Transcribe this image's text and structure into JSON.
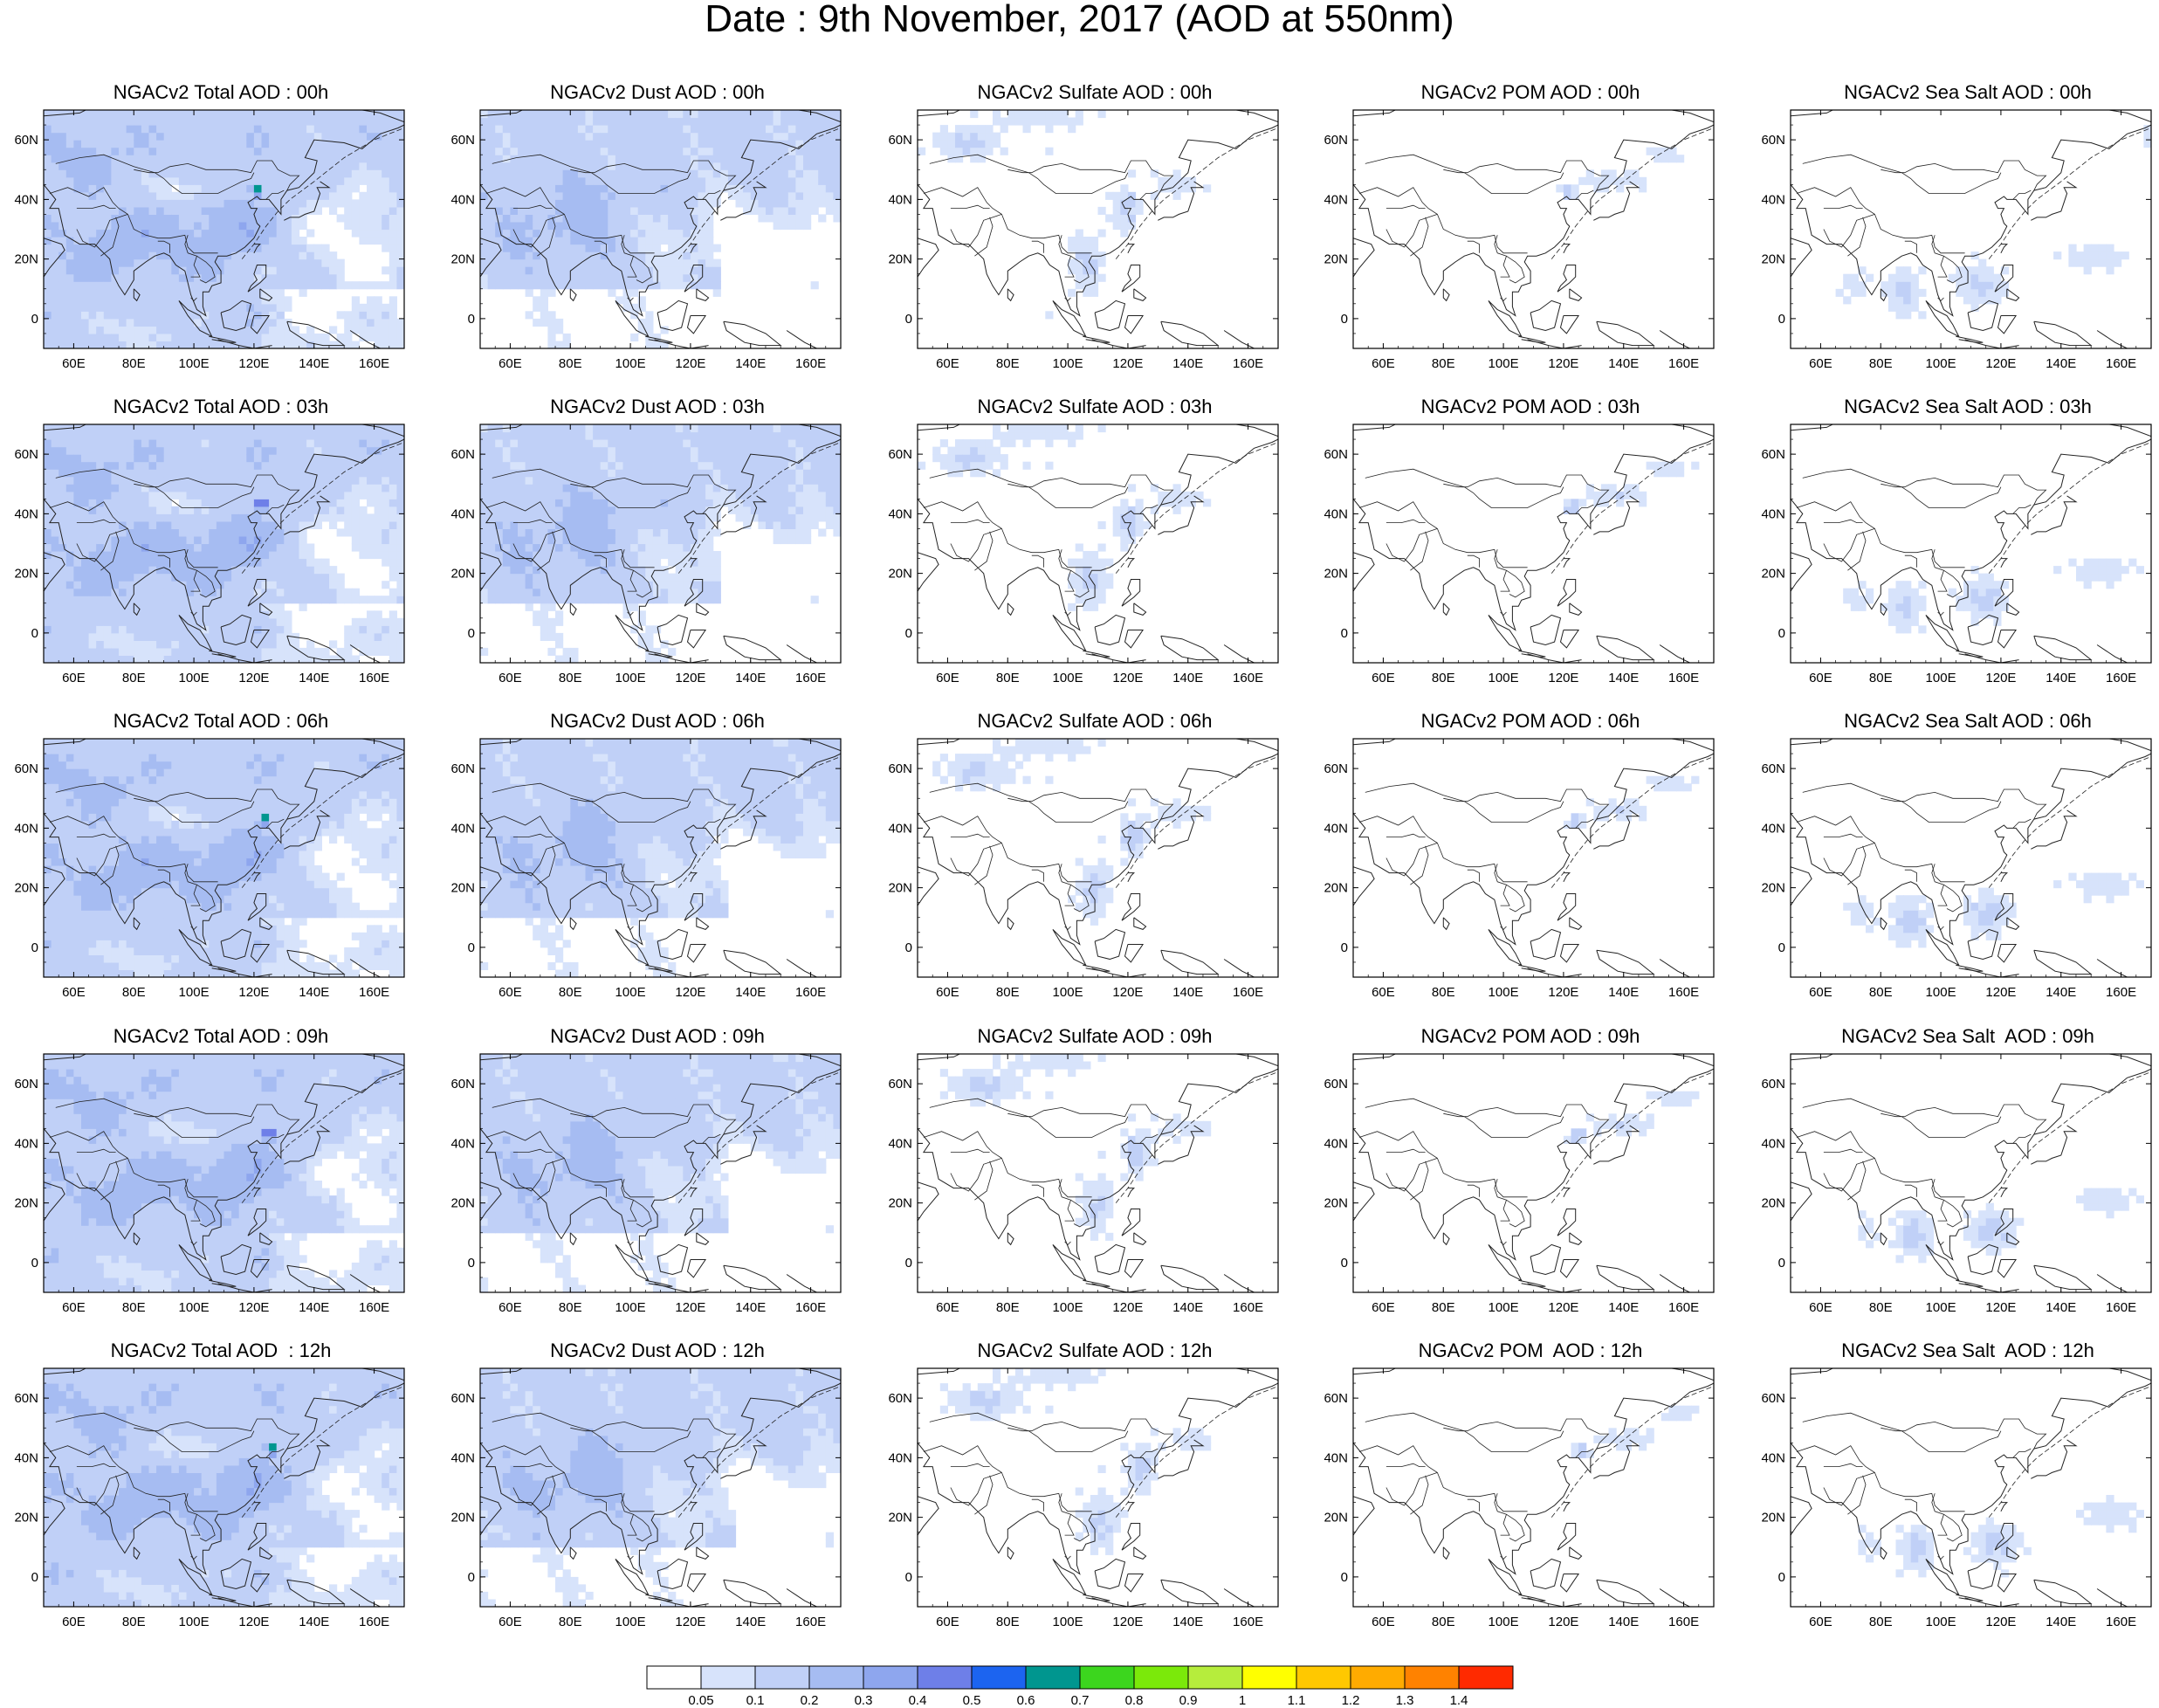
{
  "title": "Date : 9th November, 2017 (AOD at 550nm)",
  "map": {
    "lon_range": [
      50,
      170
    ],
    "lat_range": [
      -10,
      70
    ],
    "lon_ticks": [
      60,
      80,
      100,
      120,
      140,
      160
    ],
    "lon_labels": [
      "60E",
      "80E",
      "100E",
      "120E",
      "140E",
      "160E"
    ],
    "lat_ticks": [
      0,
      20,
      40,
      60
    ],
    "lat_labels": [
      "0",
      "20N",
      "40N",
      "60N"
    ]
  },
  "rows": [
    {
      "hour": "00h",
      "panels": [
        {
          "title": "NGACv2 Total AOD : 00h",
          "species": "total"
        },
        {
          "title": "NGACv2 Dust AOD : 00h",
          "species": "dust"
        },
        {
          "title": "NGACv2 Sulfate AOD : 00h",
          "species": "sulfate"
        },
        {
          "title": "NGACv2 POM AOD : 00h",
          "species": "pom"
        },
        {
          "title": "NGACv2 Sea Salt AOD : 00h",
          "species": "seasalt"
        }
      ]
    },
    {
      "hour": "03h",
      "panels": [
        {
          "title": "NGACv2 Total AOD : 03h",
          "species": "total"
        },
        {
          "title": "NGACv2 Dust AOD : 03h",
          "species": "dust"
        },
        {
          "title": "NGACv2 Sulfate AOD : 03h",
          "species": "sulfate"
        },
        {
          "title": "NGACv2 POM AOD : 03h",
          "species": "pom"
        },
        {
          "title": "NGACv2 Sea Salt AOD : 03h",
          "species": "seasalt"
        }
      ]
    },
    {
      "hour": "06h",
      "panels": [
        {
          "title": "NGACv2 Total AOD : 06h",
          "species": "total"
        },
        {
          "title": "NGACv2 Dust AOD : 06h",
          "species": "dust"
        },
        {
          "title": "NGACv2 Sulfate AOD : 06h",
          "species": "sulfate"
        },
        {
          "title": "NGACv2 POM AOD : 06h",
          "species": "pom"
        },
        {
          "title": "NGACv2 Sea Salt AOD : 06h",
          "species": "seasalt"
        }
      ]
    },
    {
      "hour": "09h",
      "panels": [
        {
          "title": "NGACv2 Total AOD : 09h",
          "species": "total"
        },
        {
          "title": "NGACv2 Dust AOD : 09h",
          "species": "dust"
        },
        {
          "title": "NGACv2 Sulfate AOD : 09h",
          "species": "sulfate"
        },
        {
          "title": "NGACv2 POM AOD : 09h",
          "species": "pom"
        },
        {
          "title": "NGACv2 Sea Salt  AOD : 09h",
          "species": "seasalt"
        }
      ]
    },
    {
      "hour": "12h",
      "panels": [
        {
          "title": "NGACv2 Total AOD  : 12h",
          "species": "total"
        },
        {
          "title": "NGACv2 Dust AOD : 12h",
          "species": "dust"
        },
        {
          "title": "NGACv2 Sulfate AOD : 12h",
          "species": "sulfate"
        },
        {
          "title": "NGACv2 POM  AOD : 12h",
          "species": "pom"
        },
        {
          "title": "NGACv2 Sea Salt  AOD : 12h",
          "species": "seasalt"
        }
      ]
    }
  ],
  "colorbar": {
    "labels": [
      "0.05",
      "0.1",
      "0.2",
      "0.3",
      "0.4",
      "0.5",
      "0.6",
      "0.7",
      "0.8",
      "0.9",
      "1",
      "1.1",
      "1.2",
      "1.3",
      "1.4"
    ],
    "colors": [
      "#ffffff",
      "#d7e3fb",
      "#c0d0f7",
      "#a6bcf2",
      "#8ea6ee",
      "#6e7fe8",
      "#1c64f0",
      "#00968f",
      "#3cd61e",
      "#7be90a",
      "#b6ed3c",
      "#ffff00",
      "#ffc800",
      "#ffab00",
      "#ff8200",
      "#ff2a00"
    ]
  }
}
